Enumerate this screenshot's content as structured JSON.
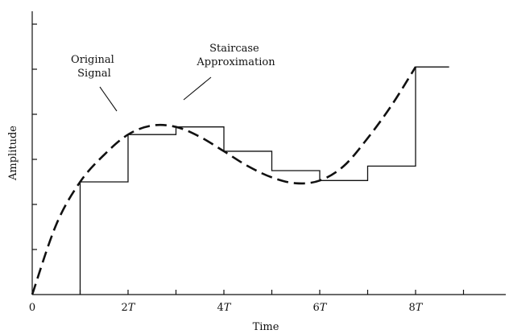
{
  "chart_data": {
    "type": "line",
    "xlabel": "Time",
    "ylabel": "Amplitude",
    "x_ticks": [
      "0",
      "2T",
      "4T",
      "6T",
      "8T"
    ],
    "xlim": [
      0,
      9.5
    ],
    "ylim": [
      0,
      6
    ],
    "y_tick_count": 6,
    "series": [
      {
        "name": "Original Signal",
        "style": "dashed",
        "x": [
          0,
          0.5,
          1,
          1.5,
          2,
          2.5,
          3,
          3.5,
          4,
          4.5,
          5,
          5.5,
          6,
          6.5,
          7,
          7.5,
          8
        ],
        "y": [
          0,
          1.55,
          2.5,
          3.1,
          3.55,
          3.75,
          3.72,
          3.5,
          3.18,
          2.85,
          2.6,
          2.47,
          2.53,
          2.85,
          3.47,
          4.2,
          5.05
        ]
      },
      {
        "name": "Staircase Approximation",
        "style": "solid",
        "steps": [
          {
            "x0": 1,
            "x1": 2,
            "y": 2.5
          },
          {
            "x0": 2,
            "x1": 3,
            "y": 3.55
          },
          {
            "x0": 3,
            "x1": 4,
            "y": 3.72
          },
          {
            "x0": 4,
            "x1": 5,
            "y": 3.18
          },
          {
            "x0": 5,
            "x1": 6,
            "y": 2.75
          },
          {
            "x0": 6,
            "x1": 7,
            "y": 2.53
          },
          {
            "x0": 7,
            "x1": 8,
            "y": 2.85
          },
          {
            "x0": 8,
            "x1": 8.7,
            "y": 5.05
          }
        ]
      }
    ],
    "annotations": [
      {
        "lines": [
          "Original",
          "Signal"
        ],
        "points_to": "Original Signal"
      },
      {
        "lines": [
          "Staircase",
          "Approximation"
        ],
        "points_to": "Staircase Approximation"
      }
    ]
  }
}
